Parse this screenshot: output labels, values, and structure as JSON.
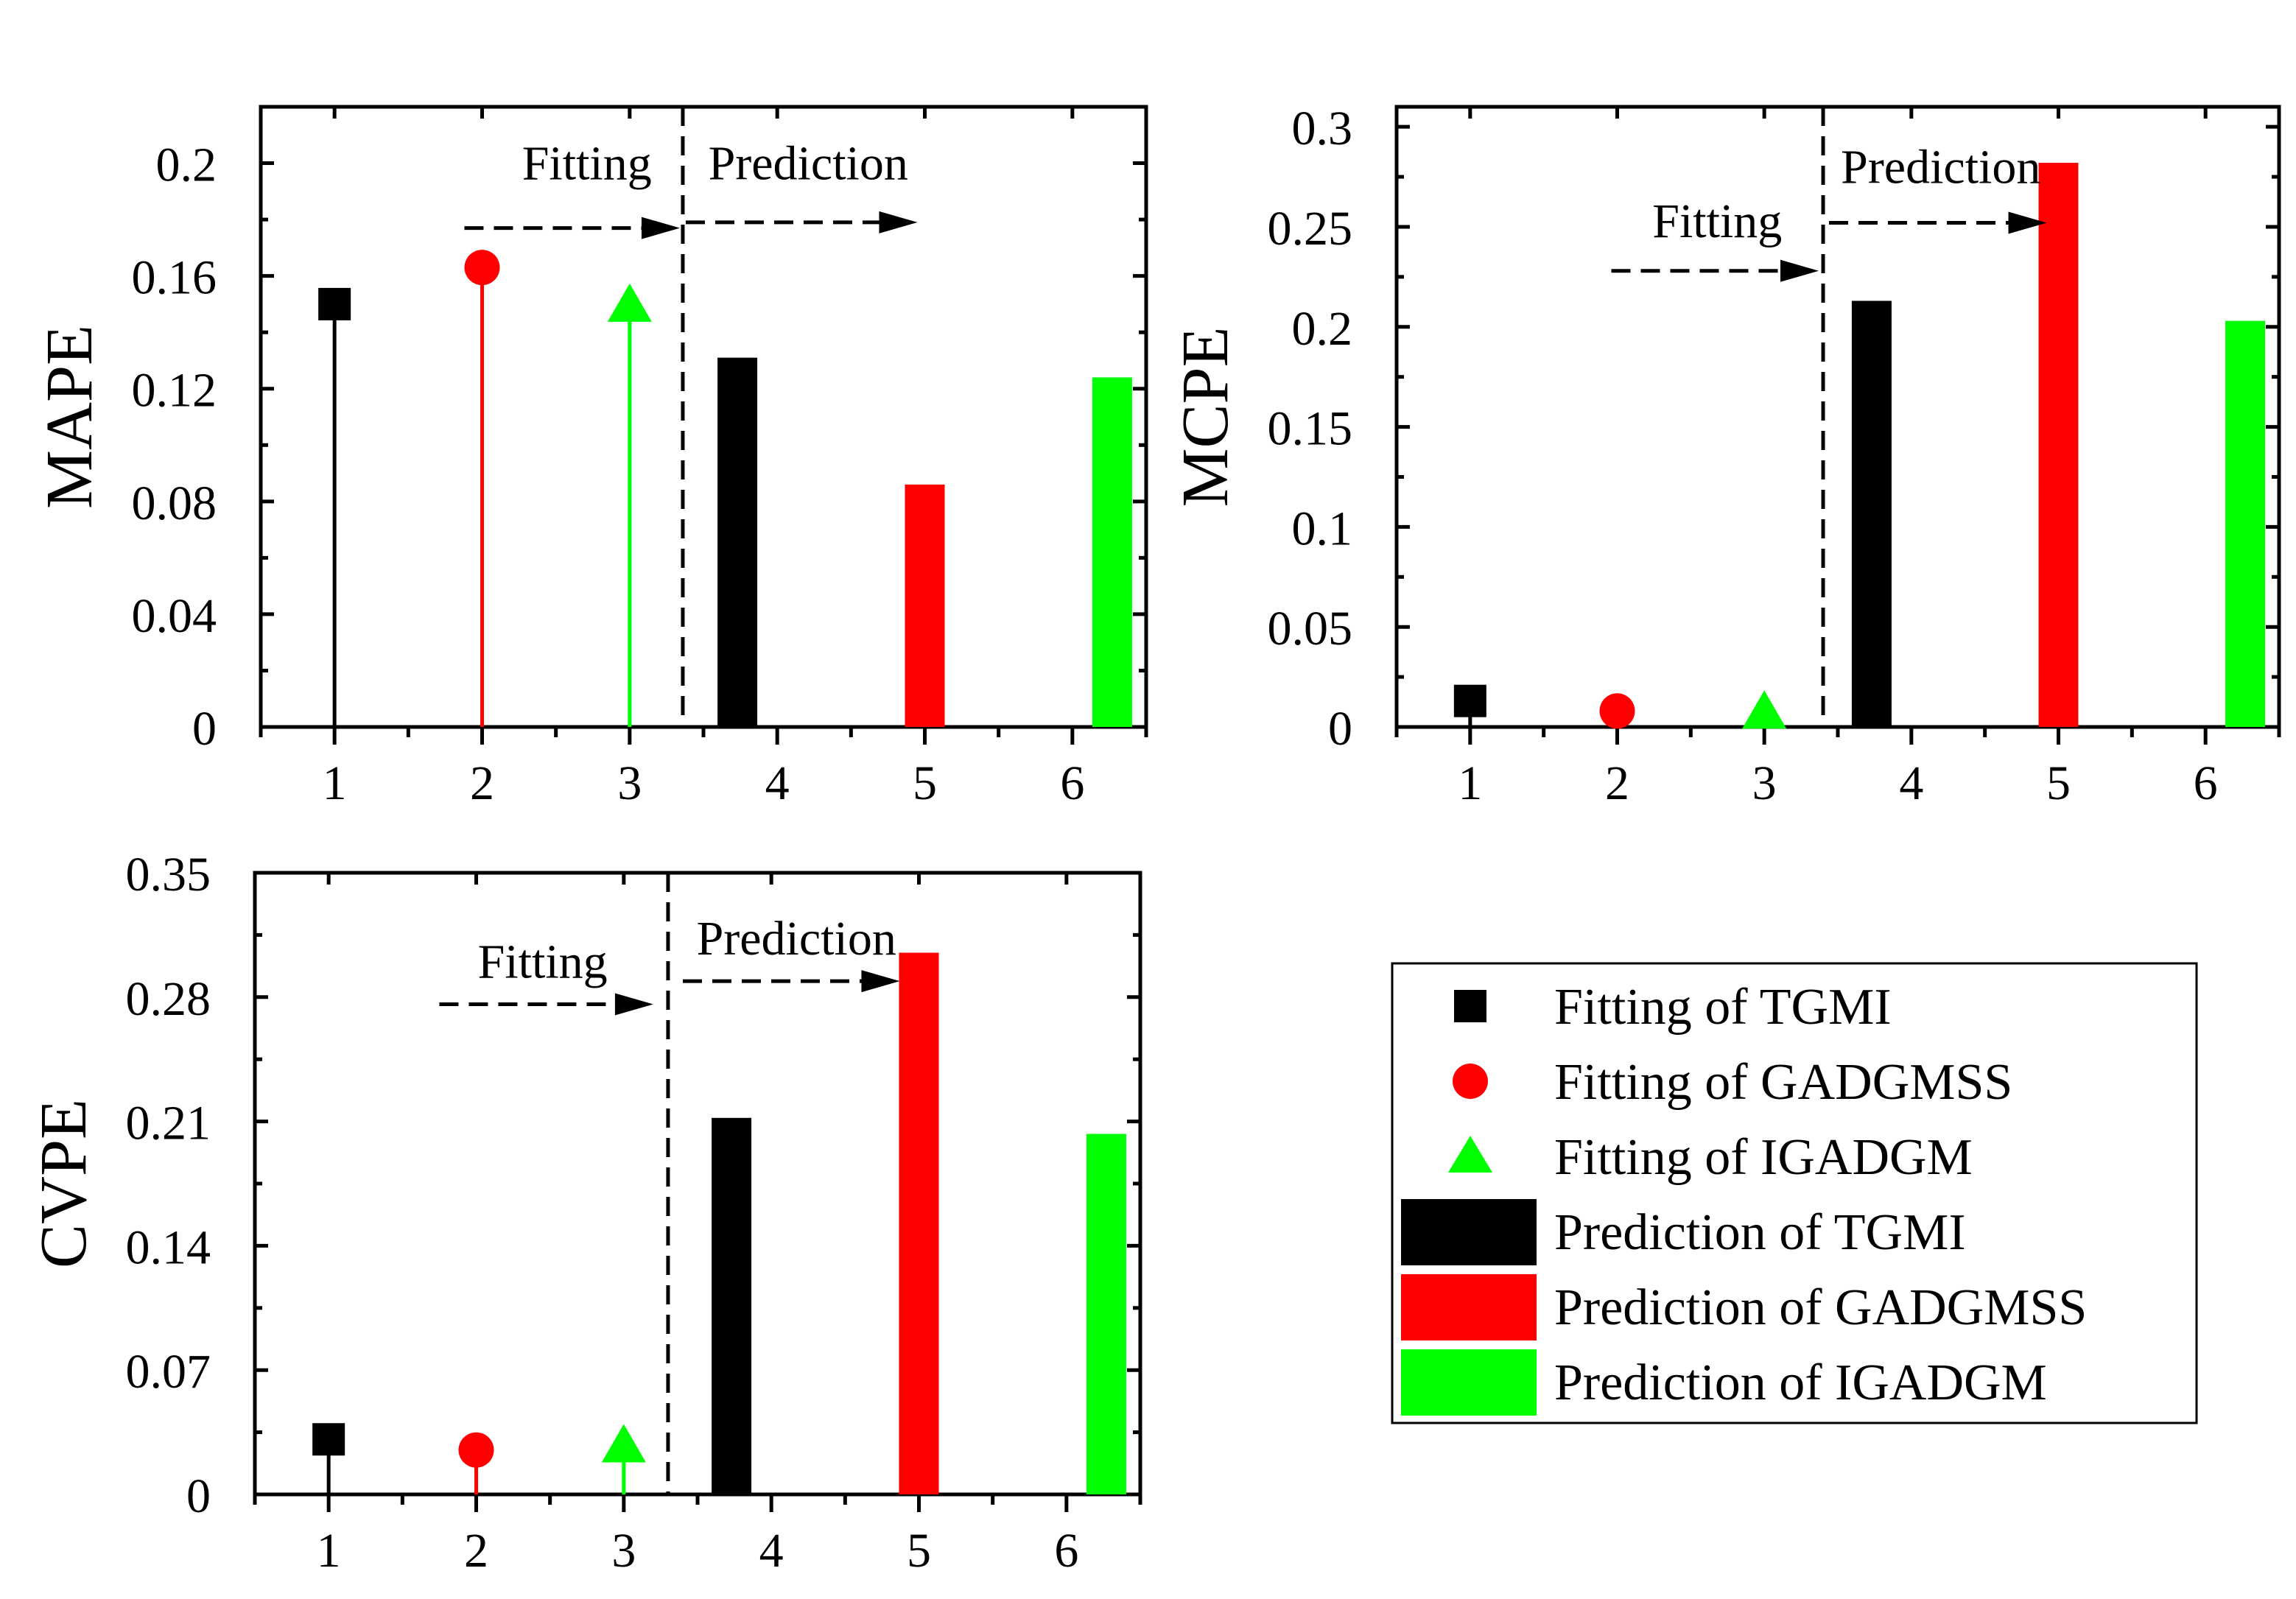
{
  "chart_data": [
    {
      "id": "mape",
      "type": "bar",
      "ylabel": "MAPE",
      "xlabel": "",
      "ylim": [
        0,
        0.22
      ],
      "yticks": [
        0,
        0.04,
        0.08,
        0.12,
        0.16,
        0.2
      ],
      "ytick_labels": [
        "0",
        "0.04",
        "0.08",
        "0.12",
        "0.16",
        "0.2"
      ],
      "xlim": [
        0.5,
        6.5
      ],
      "xticks": [
        1,
        2,
        3,
        4,
        5,
        6
      ],
      "xtick_labels": [
        "1",
        "2",
        "3",
        "4",
        "5",
        "6"
      ],
      "fitting": [
        {
          "name": "Fitting of TGMI",
          "x": 1,
          "value": 0.15
        },
        {
          "name": "Fitting of GADGMSS",
          "x": 2,
          "value": 0.163
        },
        {
          "name": "Fitting of IGADGM",
          "x": 3,
          "value": 0.15
        }
      ],
      "prediction": [
        {
          "name": "Prediction of TGMI",
          "x": 3.73,
          "value": 0.131
        },
        {
          "name": "Prediction of GADGMSS",
          "x": 5,
          "value": 0.086
        },
        {
          "name": "Prediction of IGADGM",
          "x": 6.27,
          "value": 0.124
        }
      ],
      "divider_x": 3.36,
      "fitting_label": "Fitting",
      "prediction_label": "Prediction",
      "fitting_arrow": {
        "x1": 1.88,
        "x2": 3.34,
        "y": 0.177
      },
      "prediction_arrow": {
        "x1": 3.38,
        "x2": 4.95,
        "y": 0.179
      },
      "fitting_text_at": [
        2.71,
        0.2
      ],
      "prediction_text_at": [
        4.21,
        0.2
      ]
    },
    {
      "id": "mcpe",
      "type": "bar",
      "ylabel": "MCPE",
      "xlabel": "",
      "ylim": [
        0,
        0.31
      ],
      "yticks": [
        0,
        0.05,
        0.1,
        0.15,
        0.2,
        0.25,
        0.3
      ],
      "ytick_labels": [
        "0",
        "0.05",
        "0.1",
        "0.15",
        "0.2",
        "0.25",
        "0.3"
      ],
      "xlim": [
        0.5,
        6.5
      ],
      "xticks": [
        1,
        2,
        3,
        4,
        5,
        6
      ],
      "xtick_labels": [
        "1",
        "2",
        "3",
        "4",
        "5",
        "6"
      ],
      "fitting": [
        {
          "name": "Fitting of TGMI",
          "x": 1,
          "value": 0.013
        },
        {
          "name": "Fitting of GADGMSS",
          "x": 2,
          "value": 0.008
        },
        {
          "name": "Fitting of IGADGM",
          "x": 3,
          "value": 0.008
        }
      ],
      "prediction": [
        {
          "name": "Prediction of TGMI",
          "x": 3.73,
          "value": 0.213
        },
        {
          "name": "Prediction of GADGMSS",
          "x": 5,
          "value": 0.282
        },
        {
          "name": "Prediction of IGADGM",
          "x": 6.27,
          "value": 0.203
        }
      ],
      "divider_x": 3.4,
      "fitting_label": "Fitting",
      "prediction_label": "Prediction",
      "fitting_arrow": {
        "x1": 1.96,
        "x2": 3.37,
        "y": 0.228
      },
      "prediction_arrow": {
        "x1": 3.44,
        "x2": 4.92,
        "y": 0.252
      },
      "fitting_text_at": [
        2.68,
        0.253
      ],
      "prediction_text_at": [
        4.2,
        0.28
      ]
    },
    {
      "id": "cvpe",
      "type": "bar",
      "ylabel": "CVPE",
      "xlabel": "",
      "ylim": [
        0,
        0.35
      ],
      "yticks": [
        0,
        0.07,
        0.14,
        0.21,
        0.28,
        0.35
      ],
      "ytick_labels": [
        "0",
        "0.07",
        "0.14",
        "0.21",
        "0.28",
        "0.35"
      ],
      "xlim": [
        0.5,
        6.5
      ],
      "xticks": [
        1,
        2,
        3,
        4,
        5,
        6
      ],
      "xtick_labels": [
        "1",
        "2",
        "3",
        "4",
        "5",
        "6"
      ],
      "fitting": [
        {
          "name": "Fitting of TGMI",
          "x": 1,
          "value": 0.031
        },
        {
          "name": "Fitting of GADGMSS",
          "x": 2,
          "value": 0.025
        },
        {
          "name": "Fitting of IGADGM",
          "x": 3,
          "value": 0.028
        }
      ],
      "prediction": [
        {
          "name": "Prediction of TGMI",
          "x": 3.73,
          "value": 0.212
        },
        {
          "name": "Prediction of GADGMSS",
          "x": 5,
          "value": 0.305
        },
        {
          "name": "Prediction of IGADGM",
          "x": 6.27,
          "value": 0.203
        }
      ],
      "divider_x": 3.3,
      "fitting_label": "Fitting",
      "prediction_label": "Prediction",
      "fitting_arrow": {
        "x1": 1.75,
        "x2": 3.2,
        "y": 0.276
      },
      "prediction_arrow": {
        "x1": 3.4,
        "x2": 4.87,
        "y": 0.289
      },
      "fitting_text_at": [
        2.45,
        0.3
      ],
      "prediction_text_at": [
        4.17,
        0.313
      ]
    }
  ],
  "legend": {
    "position": "bottom-right",
    "entries": [
      {
        "label": "Fitting of TGMI",
        "marker": "square",
        "color": "#000000"
      },
      {
        "label": "Fitting of GADGMSS",
        "marker": "circle",
        "color": "#ff0000"
      },
      {
        "label": "Fitting of IGADGM",
        "marker": "triangle",
        "color": "#00ff00"
      },
      {
        "label": "Prediction of TGMI",
        "marker": "bar",
        "color": "#000000"
      },
      {
        "label": "Prediction of GADGMSS",
        "marker": "bar",
        "color": "#ff0000"
      },
      {
        "label": "Prediction of IGADGM",
        "marker": "bar",
        "color": "#00ff00"
      }
    ]
  },
  "colors": {
    "tgmi": "#000000",
    "gadgmss": "#ff0000",
    "igadgm": "#00ff00",
    "axis": "#000000"
  }
}
